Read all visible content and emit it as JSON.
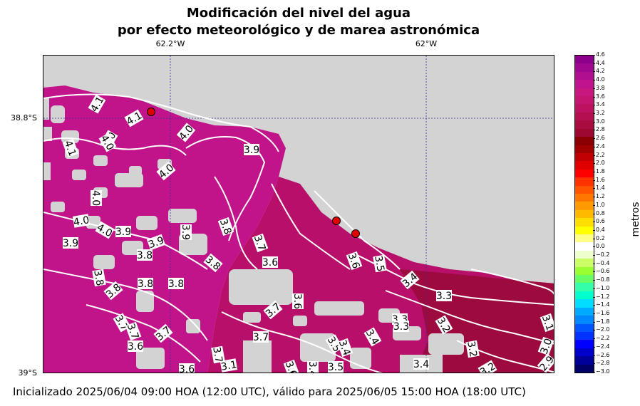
{
  "title": {
    "line1": "Modificación del nivel del agua",
    "line2": "por efecto meteorológico y de marea astronómica"
  },
  "axes": {
    "lon_labels": [
      "62.2°W",
      "62°W"
    ],
    "lat_labels": [
      "38.8°S",
      "39°S"
    ]
  },
  "colorbar": {
    "label": "metros",
    "ticks": [
      "4.6",
      "4.4",
      "4.2",
      "4.0",
      "3.8",
      "3.6",
      "3.4",
      "3.2",
      "3.0",
      "2.8",
      "2.6",
      "2.4",
      "2.2",
      "2.0",
      "1.8",
      "1.6",
      "1.4",
      "1.2",
      "1.0",
      "0.8",
      "0.6",
      "0.4",
      "0.2",
      "0.0",
      "−0.2",
      "−0.4",
      "−0.6",
      "−0.8",
      "−1.0",
      "−1.2",
      "−1.4",
      "−1.6",
      "−1.8",
      "−2.0",
      "−2.2",
      "−2.4",
      "−2.6",
      "−2.8",
      "−3.0"
    ],
    "colors": [
      "#8b008b",
      "#a0088f",
      "#b01090",
      "#c0148c",
      "#c81880",
      "#c41670",
      "#bc1260",
      "#b41050",
      "#a80c40",
      "#9c0830",
      "#8b0000",
      "#a00000",
      "#c00000",
      "#e00000",
      "#ff0000",
      "#ff3300",
      "#ff5500",
      "#ff7700",
      "#ff9900",
      "#ffbb00",
      "#ffdd00",
      "#ffff00",
      "#ffff88",
      "#ffffff",
      "#eeffcc",
      "#ccff66",
      "#99ff33",
      "#66ff66",
      "#33ffaa",
      "#00ffcc",
      "#00ddff",
      "#00aaff",
      "#0088ff",
      "#0055ff",
      "#0033ff",
      "#0000ff",
      "#0000cc",
      "#000099",
      "#000066"
    ]
  },
  "contour_labels": [
    "4.1",
    "4.1",
    "4.0",
    "4.1",
    "4.0",
    "3.9",
    "4.0",
    "4.0",
    "4.0",
    "4.0",
    "3.9",
    "3.9",
    "4.0",
    "3.8",
    "3.9",
    "3.9",
    "3.8",
    "3.8",
    "3.7",
    "3.6",
    "3.5",
    "3.8",
    "3.6",
    "3.4",
    "3.3",
    "3.8",
    "3.8",
    "3.8",
    "3.7",
    "3.6",
    "3.7",
    "3.7",
    "3.3",
    "3.2",
    "3.1",
    "3.7",
    "3.7",
    "3.6",
    "3.7",
    "3.5",
    "3.4",
    "3.4",
    "3.2",
    "3.0",
    "2.9",
    "3.6",
    "3.1",
    "3.6",
    "3.4",
    "3.5",
    "3.4",
    "3.3",
    "3.2"
  ],
  "markers_label": "stations",
  "footer": "Inicializado 2025/06/04 09:00 HOA (12:00 UTC), válido para 2025/06/05 15:00 HOA (18:00 UTC)"
}
